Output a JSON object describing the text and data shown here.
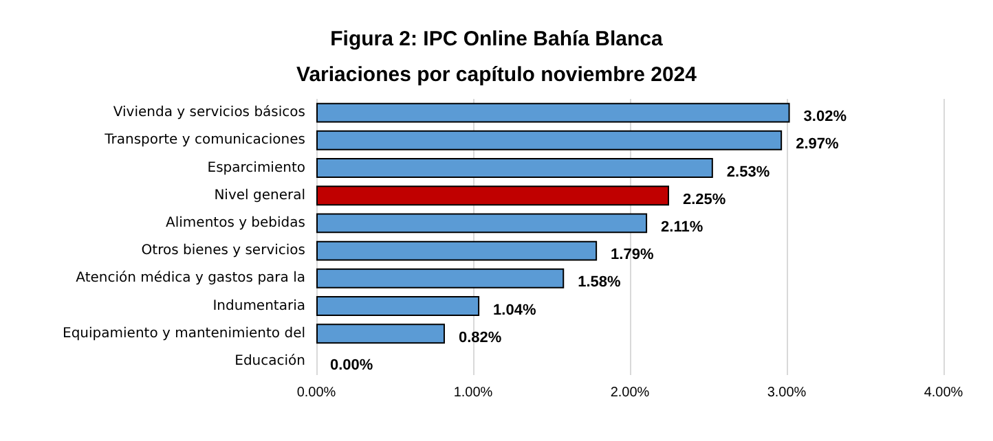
{
  "chart_data": {
    "type": "bar",
    "orientation": "horizontal",
    "title": "Figura 2: IPC Online Bahía Blanca",
    "subtitle": "Variaciones por capítulo noviembre 2024",
    "categories": [
      "Vivienda y servicios básicos",
      "Transporte y comunicaciones",
      "Esparcimiento",
      "Nivel general",
      "Alimentos y bebidas",
      "Otros bienes y servicios",
      "Atención médica y gastos para la",
      "Indumentaria",
      "Equipamiento y mantenimiento del",
      "Educación"
    ],
    "values": [
      3.02,
      2.97,
      2.53,
      2.25,
      2.11,
      1.79,
      1.58,
      1.04,
      0.82,
      0.0
    ],
    "value_labels": [
      "3.02%",
      "2.97%",
      "2.53%",
      "2.25%",
      "2.11%",
      "1.79%",
      "1.58%",
      "1.04%",
      "0.82%",
      "0.00%"
    ],
    "colors": [
      "#5b9bd5",
      "#5b9bd5",
      "#5b9bd5",
      "#c00000",
      "#5b9bd5",
      "#5b9bd5",
      "#5b9bd5",
      "#5b9bd5",
      "#5b9bd5",
      "#5b9bd5"
    ],
    "xlim": [
      0,
      4
    ],
    "xticks": [
      {
        "value": 0,
        "label": "0.00%"
      },
      {
        "value": 1,
        "label": "1.00%"
      },
      {
        "value": 2,
        "label": "2.00%"
      },
      {
        "value": 3,
        "label": "3.00%"
      },
      {
        "value": 4,
        "label": "4.00%"
      }
    ],
    "grid": "x"
  }
}
